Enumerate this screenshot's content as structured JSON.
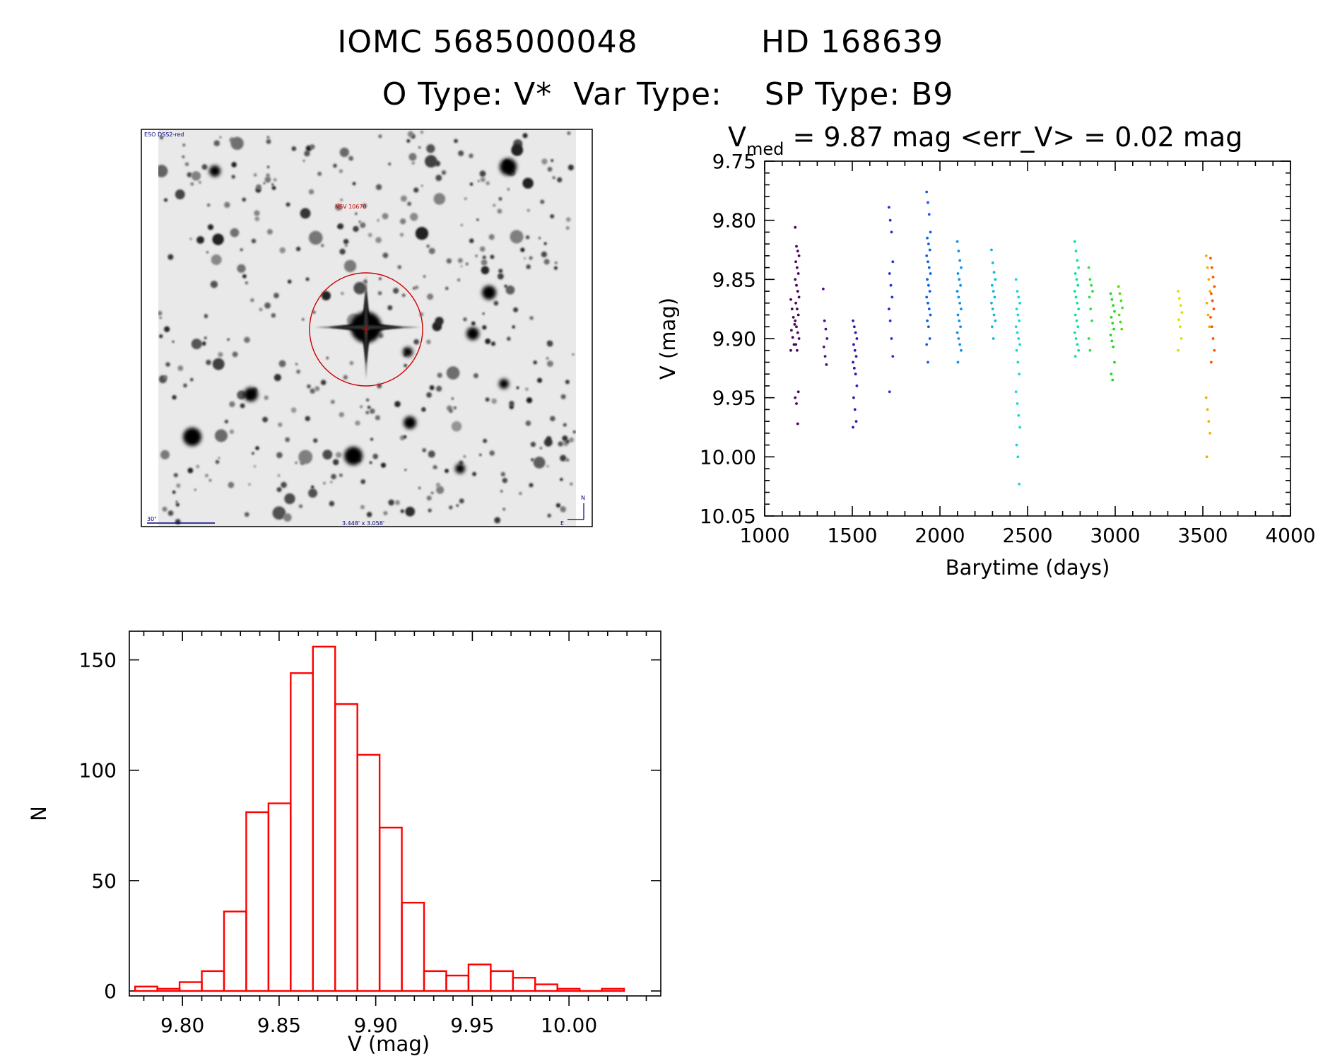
{
  "header": {
    "line1_left": "IOMC 5685000048",
    "line1_right": "HD 168639",
    "line2": "O Type: V*  Var Type:    SP Type: B9"
  },
  "finder_image": {
    "survey_label": "ESO DSS2-red",
    "object_label": "NSV 10670",
    "scale_label": "30\"",
    "fov_label": "3.448' x 3.058'",
    "north_label": "N",
    "east_label": "E",
    "colors": {
      "marker": "#cc0000",
      "text_blue": "#000080",
      "text_red": "#cc0000"
    }
  },
  "chart_data": [
    {
      "type": "scatter",
      "title": {
        "prefix": "V",
        "sub": "med",
        "suffix": " = 9.87 mag <err_V> = 0.02 mag"
      },
      "xlabel": "Barytime (days)",
      "ylabel": "V (mag)",
      "xlim": [
        1000,
        4000
      ],
      "ylim": [
        10.05,
        9.75
      ],
      "y_inverted": true,
      "x_ticks": [
        "1000",
        "1500",
        "2000",
        "2500",
        "3000",
        "3500",
        "4000"
      ],
      "y_ticks": [
        "9.75",
        "9.80",
        "9.85",
        "9.90",
        "9.95",
        "10.00",
        "10.05"
      ],
      "groups": [
        {
          "x": 1160,
          "color": "#4b005a",
          "values": [
            9.867,
            9.875,
            9.882,
            9.888,
            9.893,
            9.899,
            9.905,
            9.91
          ]
        },
        {
          "x": 1185,
          "color": "#4b005a",
          "values": [
            9.806,
            9.822,
            9.826,
            9.83,
            9.835,
            9.84,
            9.845,
            9.85,
            9.855,
            9.86,
            9.865,
            9.87,
            9.875,
            9.88,
            9.885,
            9.89,
            9.895,
            9.9,
            9.905,
            9.91,
            9.945,
            9.95,
            9.955,
            9.972
          ]
        },
        {
          "x": 1345,
          "color": "#4a0a8c",
          "values": [
            9.858,
            9.885,
            9.892,
            9.9,
            9.907,
            9.915,
            9.922
          ]
        },
        {
          "x": 1515,
          "color": "#3a10b0",
          "values": [
            9.885,
            9.89,
            9.895,
            9.9,
            9.905,
            9.91,
            9.915,
            9.92,
            9.925,
            9.93,
            9.94,
            9.95,
            9.96,
            9.97,
            9.975
          ]
        },
        {
          "x": 1720,
          "color": "#2030d8",
          "values": [
            9.789,
            9.8,
            9.81,
            9.835,
            9.845,
            9.855,
            9.865,
            9.875,
            9.885,
            9.9,
            9.915,
            9.945
          ]
        },
        {
          "x": 1935,
          "color": "#1060e0",
          "values": [
            9.776,
            9.785,
            9.795,
            9.81,
            9.815,
            9.82,
            9.825,
            9.83,
            9.835,
            9.84,
            9.845,
            9.85,
            9.855,
            9.86,
            9.865,
            9.87,
            9.875,
            9.88,
            9.885,
            9.89,
            9.9,
            9.905,
            9.92
          ]
        },
        {
          "x": 2110,
          "color": "#1090e8",
          "values": [
            9.818,
            9.826,
            9.834,
            9.84,
            9.845,
            9.85,
            9.855,
            9.86,
            9.865,
            9.87,
            9.875,
            9.88,
            9.885,
            9.89,
            9.895,
            9.9,
            9.905,
            9.91,
            9.92
          ]
        },
        {
          "x": 2305,
          "color": "#10b8e0",
          "values": [
            9.825,
            9.836,
            9.844,
            9.85,
            9.855,
            9.86,
            9.865,
            9.87,
            9.875,
            9.88,
            9.885,
            9.89,
            9.9
          ]
        },
        {
          "x": 2445,
          "color": "#18d8d8",
          "values": [
            9.85,
            9.86,
            9.865,
            9.87,
            9.875,
            9.88,
            9.885,
            9.89,
            9.895,
            9.9,
            9.905,
            9.91,
            9.92,
            9.93,
            9.945,
            9.955,
            9.965,
            9.975,
            9.99,
            10.0,
            10.023
          ]
        },
        {
          "x": 2780,
          "color": "#10e0a0",
          "values": [
            9.818,
            9.826,
            9.834,
            9.84,
            9.845,
            9.85,
            9.855,
            9.86,
            9.865,
            9.87,
            9.875,
            9.88,
            9.885,
            9.89,
            9.895,
            9.9,
            9.905,
            9.91,
            9.915
          ]
        },
        {
          "x": 2860,
          "color": "#30e040",
          "values": [
            9.84,
            9.85,
            9.855,
            9.86,
            9.865,
            9.875,
            9.885,
            9.9,
            9.91
          ]
        },
        {
          "x": 2985,
          "color": "#20d820",
          "values": [
            9.862,
            9.867,
            9.872,
            9.877,
            9.882,
            9.887,
            9.892,
            9.897,
            9.902,
            9.907,
            9.92,
            9.93,
            9.935
          ]
        },
        {
          "x": 3030,
          "color": "#50e010",
          "values": [
            9.856,
            9.862,
            9.868,
            9.874,
            9.88,
            9.886,
            9.892
          ]
        },
        {
          "x": 3370,
          "color": "#d8e010",
          "values": [
            9.86,
            9.866,
            9.872,
            9.878,
            9.884,
            9.89,
            9.9,
            9.91
          ]
        },
        {
          "x": 3530,
          "color": "#f0b000",
          "values": [
            9.83,
            9.84,
            9.85,
            9.86,
            9.87,
            9.88,
            9.89,
            9.95,
            9.96,
            9.97,
            9.98,
            10.0
          ]
        },
        {
          "x": 3555,
          "color": "#ff5000",
          "values": [
            9.832,
            9.84,
            9.848,
            9.856,
            9.862,
            9.868,
            9.875,
            9.882,
            9.89,
            9.9,
            9.91,
            9.92
          ]
        }
      ]
    },
    {
      "type": "bar",
      "subtype": "histogram",
      "xlabel": "V (mag)",
      "ylabel": "N",
      "xlim": [
        9.7725,
        10.0475
      ],
      "ylim": [
        0,
        163
      ],
      "x_ticks": [
        "9.80",
        "9.85",
        "9.90",
        "9.95",
        "10.00"
      ],
      "y_ticks": [
        "0",
        "50",
        "100",
        "150"
      ],
      "bin_width": 0.0115,
      "bins": [
        {
          "left": 9.7755,
          "count": 2
        },
        {
          "left": 9.787,
          "count": 1
        },
        {
          "left": 9.7985,
          "count": 4
        },
        {
          "left": 9.81,
          "count": 9
        },
        {
          "left": 9.8215,
          "count": 36
        },
        {
          "left": 9.833,
          "count": 81
        },
        {
          "left": 9.8445,
          "count": 85
        },
        {
          "left": 9.856,
          "count": 144
        },
        {
          "left": 9.8675,
          "count": 156
        },
        {
          "left": 9.879,
          "count": 130
        },
        {
          "left": 9.8905,
          "count": 107
        },
        {
          "left": 9.902,
          "count": 74
        },
        {
          "left": 9.9135,
          "count": 40
        },
        {
          "left": 9.925,
          "count": 9
        },
        {
          "left": 9.9365,
          "count": 7
        },
        {
          "left": 9.948,
          "count": 12
        },
        {
          "left": 9.9595,
          "count": 9
        },
        {
          "left": 9.971,
          "count": 6
        },
        {
          "left": 9.9825,
          "count": 3
        },
        {
          "left": 9.994,
          "count": 1
        },
        {
          "left": 10.0055,
          "count": 0
        },
        {
          "left": 10.017,
          "count": 1
        }
      ],
      "bar_color": "#ff0000"
    }
  ]
}
